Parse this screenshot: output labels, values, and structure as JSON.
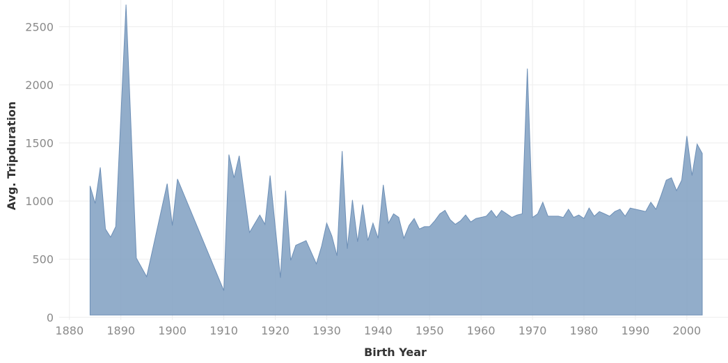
{
  "chart_data": {
    "type": "area",
    "title": "",
    "xlabel": "Birth Year",
    "ylabel": "Avg. Tripduration",
    "xlim": [
      1878,
      2008
    ],
    "ylim": [
      -70,
      2730
    ],
    "x_ticks": [
      1880,
      1890,
      1900,
      1910,
      1920,
      1930,
      1940,
      1950,
      1960,
      1970,
      1980,
      1990,
      2000
    ],
    "y_ticks": [
      0,
      500,
      1000,
      1500,
      2000,
      2500
    ],
    "grid": true,
    "color": "#7f9fc1",
    "fill_opacity": 0.85,
    "series": [
      {
        "x": [
          1884,
          1885,
          1886,
          1887,
          1888,
          1889,
          1891,
          1893,
          1895,
          1899,
          1900,
          1901,
          1910,
          1911,
          1912,
          1913,
          1915,
          1917,
          1918,
          1919,
          1921,
          1922,
          1923,
          1924,
          1926,
          1928,
          1929,
          1930,
          1931,
          1932,
          1933,
          1934,
          1935,
          1936,
          1937,
          1938,
          1939,
          1940,
          1941,
          1942,
          1943,
          1944,
          1945,
          1946,
          1947,
          1948,
          1949,
          1950,
          1951,
          1952,
          1953,
          1954,
          1955,
          1956,
          1957,
          1958,
          1959,
          1960,
          1961,
          1962,
          1963,
          1964,
          1965,
          1966,
          1967,
          1968,
          1969,
          1970,
          1971,
          1972,
          1973,
          1974,
          1975,
          1976,
          1977,
          1978,
          1979,
          1980,
          1981,
          1982,
          1983,
          1984,
          1985,
          1986,
          1987,
          1988,
          1989,
          1990,
          1991,
          1992,
          1993,
          1994,
          1995,
          1996,
          1997,
          1998,
          1999,
          2000,
          2001,
          2002,
          2003
        ],
        "values": [
          1130,
          980,
          1290,
          760,
          690,
          780,
          2690,
          510,
          350,
          1150,
          790,
          1190,
          230,
          1400,
          1200,
          1390,
          730,
          880,
          800,
          1220,
          340,
          1090,
          490,
          620,
          660,
          460,
          610,
          810,
          700,
          530,
          1430,
          590,
          1010,
          650,
          970,
          660,
          810,
          680,
          1140,
          810,
          890,
          860,
          680,
          790,
          850,
          760,
          780,
          780,
          830,
          890,
          920,
          840,
          800,
          830,
          880,
          820,
          850,
          860,
          870,
          920,
          860,
          920,
          890,
          860,
          880,
          890,
          2140,
          860,
          890,
          990,
          870,
          870,
          870,
          860,
          930,
          860,
          880,
          850,
          940,
          870,
          910,
          890,
          870,
          910,
          930,
          870,
          940,
          930,
          920,
          910,
          990,
          930,
          1050,
          1180,
          1200,
          1090,
          1180,
          1560,
          1220,
          1490,
          1410
        ]
      }
    ]
  }
}
